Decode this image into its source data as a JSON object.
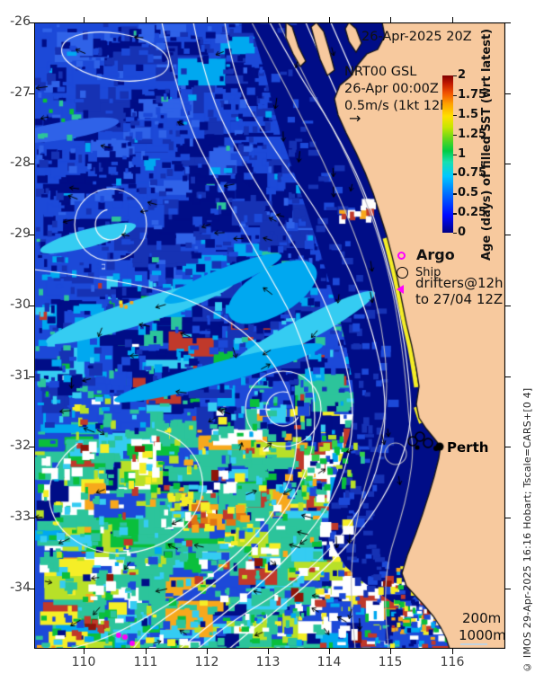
{
  "title": {
    "datetime": "26-Apr-2025 20Z"
  },
  "info_box": {
    "line1": "NRT00 GSL",
    "line2": "26-Apr 00:00Z",
    "line3": "0.5m/s (1kt 12h",
    "arrow": "→"
  },
  "colorbar": {
    "title": "Age (days) of filled SST (wrt latest)",
    "min": 0,
    "max": 2,
    "ticks": [
      "2",
      "1.75",
      "1.5",
      "1.25",
      "1",
      "0.75",
      "0.5",
      "0.25",
      "0"
    ]
  },
  "legend": {
    "argo": "Argo",
    "ship": "Ship",
    "drifters_line1": "drifters@12h",
    "drifters_line2": "to 27/04 12Z"
  },
  "labels": {
    "perth": "Perth",
    "depth_200": "200m",
    "depth_1000": "1000m"
  },
  "axes": {
    "lat": [
      "-26",
      "-27",
      "-28",
      "-29",
      "-30",
      "-31",
      "-32",
      "-33",
      "-34"
    ],
    "lon": [
      "110",
      "111",
      "112",
      "113",
      "114",
      "115",
      "116"
    ]
  },
  "credit": "© IMOS 29-Apr-2025 16:16 Hobart; Tscale=CARS+[0 4]",
  "map_meta": {
    "lat_range": [
      -26,
      -34.85
    ],
    "lon_range": [
      109.2,
      116.9
    ],
    "colorbar_range": [
      0,
      2
    ]
  },
  "render": {
    "seed": 20250426,
    "land_color": "#f7c99e",
    "coast_color": "#141414",
    "contour_color": "#fdfdfd",
    "bathy_color": "#b9b9c4",
    "arrow_color": "#000000",
    "marker_magenta": "#ff00ff",
    "palette": {
      "navy": "#000d87",
      "blue1": "#1632b4",
      "blue2": "#1c49d8",
      "blue3": "#2f62e8",
      "cyan": "#00a8f0",
      "cyan2": "#35ccf2",
      "teal": "#2cc49b",
      "green": "#0abf3c",
      "green2": "#35d04b",
      "ygreen": "#b8e028",
      "yellow": "#f5ee27",
      "orange": "#f7a81c",
      "orange2": "#e07414",
      "red": "#c0392b",
      "darkred": "#8e1509",
      "white": "#ffffff"
    }
  }
}
